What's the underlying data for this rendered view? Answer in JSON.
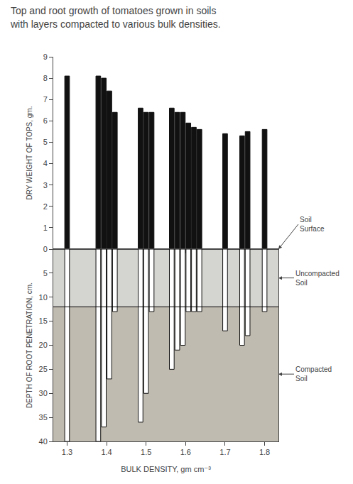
{
  "chart_data": [
    {
      "type": "bar",
      "title": "Top and root growth of tomatoes grown in soils\nwith layers compacted to various bulk densities.",
      "ylabel": "DRY WEIGHT OF TOPS, gm.",
      "x": [
        1.3,
        1.4,
        1.4,
        1.4,
        1.4,
        1.5,
        1.5,
        1.5,
        1.6,
        1.6,
        1.6,
        1.6,
        1.6,
        1.6,
        1.7,
        1.75,
        1.75,
        1.8
      ],
      "values": [
        8.1,
        8.1,
        8.0,
        7.4,
        6.4,
        6.6,
        6.4,
        6.4,
        6.6,
        6.4,
        6.4,
        5.9,
        5.7,
        5.6,
        5.4,
        5.3,
        5.5,
        5.6
      ],
      "color": "#111111",
      "xlim": [
        1.265,
        1.835
      ],
      "xticks": [
        1.3,
        1.4,
        1.5,
        1.6,
        1.7,
        1.8
      ],
      "ylim": [
        0,
        9
      ],
      "yticks": [
        0,
        1,
        2,
        3,
        4,
        5,
        6,
        7,
        8,
        9
      ],
      "tick_labels": "y",
      "grid": false,
      "annotations": [
        "Soil\nSurface"
      ]
    },
    {
      "type": "bar",
      "xlabel": "BULK DENSITY, gm cm⁻³",
      "ylabel": "DEPTH OF ROOT PENETRATION, cm.",
      "x": [
        1.3,
        1.4,
        1.4,
        1.4,
        1.4,
        1.5,
        1.5,
        1.5,
        1.6,
        1.6,
        1.6,
        1.6,
        1.6,
        1.6,
        1.7,
        1.75,
        1.75,
        1.8
      ],
      "values": [
        40,
        40,
        37,
        27,
        13,
        36,
        30,
        13,
        25,
        21,
        20,
        13,
        13,
        13,
        17,
        20,
        18,
        13
      ],
      "color": "#ffffff",
      "xlim": [
        1.265,
        1.835
      ],
      "xticks": [
        1.3,
        1.4,
        1.5,
        1.6,
        1.7,
        1.8
      ],
      "ylim": [
        0,
        40
      ],
      "yticks": [
        5,
        10,
        15,
        20,
        25,
        30,
        35,
        40
      ],
      "grid": false,
      "layer_depth": 12,
      "layers": [
        {
          "label": "Uncompacted\nSoil",
          "color": "#d4d4d0"
        },
        {
          "label": "Compacted\nSoil",
          "color": "#c0bbb0"
        }
      ]
    }
  ]
}
